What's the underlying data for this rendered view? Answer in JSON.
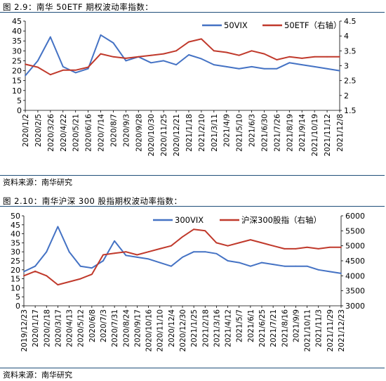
{
  "figures": [
    {
      "title": "图 2.9：南华 50ETF 期权波动率指数：",
      "source": "资料来源：南华研究",
      "colors": {
        "vix": "#4472c4",
        "price": "#c0392b"
      },
      "chart_data": {
        "type": "line",
        "x": [
          "2020/1/2",
          "2020/2/5",
          "2020/3/26",
          "2020/4/22",
          "2020/5/21",
          "2020/6/16",
          "2020/7/14",
          "2020/8/7",
          "2020/9/3",
          "2020/9/28",
          "2020/10/30",
          "2020/11/25",
          "2020/12/21",
          "2021/1/18",
          "2021/2/10",
          "2021/3/11",
          "2021/4/9",
          "2021/5/10",
          "2021/6/3",
          "2021/6/30",
          "2021/7/26",
          "2021/8/19",
          "2021/9/14",
          "2021/10/19",
          "2021/11/12",
          "2021/12/8"
        ],
        "ylim": [
          0,
          45
        ],
        "y_ticks": [
          "0",
          "5",
          "10",
          "15",
          "20",
          "25",
          "30",
          "35",
          "40",
          "45"
        ],
        "y2lim": [
          1.5,
          4.5
        ],
        "y2_ticks": [
          "1.5",
          "2",
          "2.5",
          "3",
          "3.5",
          "4",
          "4.5"
        ],
        "series": [
          {
            "name": "50VIX",
            "axis": "left",
            "values": [
              17.5,
              25,
              37,
              22,
              19,
              21,
              38,
              34,
              25,
              27,
              24,
              25,
              23,
              28,
              26,
              23,
              22,
              21,
              22,
              21,
              21,
              24,
              23,
              22,
              21,
              20
            ]
          },
          {
            "name": "50ETF（右轴）",
            "axis": "right",
            "values": [
              3.05,
              2.95,
              2.7,
              2.85,
              2.85,
              2.95,
              3.4,
              3.3,
              3.25,
              3.3,
              3.35,
              3.4,
              3.5,
              3.8,
              3.9,
              3.5,
              3.45,
              3.35,
              3.5,
              3.4,
              3.2,
              3.3,
              3.25,
              3.3,
              3.3,
              3.3
            ]
          }
        ]
      }
    },
    {
      "title": "图 2.10：南华沪深 300 股指期权波动率指数：",
      "source": "资料来源：南华研究",
      "colors": {
        "vix": "#4472c4",
        "price": "#c0392b"
      },
      "chart_data": {
        "type": "line",
        "x": [
          "2019/12/23",
          "2020/1/17",
          "2020/2/18",
          "2020/3/17",
          "2020/4/13",
          "2020/5/12",
          "2020/6/8",
          "2020/7/3",
          "2020/7/31",
          "2020/8/24",
          "2020/9/17",
          "2020/10/16",
          "2020/11/10",
          "2020/12/4",
          "2020/12/30",
          "2021/1/25",
          "2021/2/18",
          "2021/3/16",
          "2021/4/12",
          "2021/5/7",
          "2021/6/1",
          "2021/6/25",
          "2021/7/21",
          "2021/8/16",
          "2021/9/9",
          "2021/10/11",
          "2021/11/3",
          "2021/11/29",
          "2021/12/23"
        ],
        "ylim": [
          0,
          50
        ],
        "y_ticks": [
          "0",
          "5",
          "10",
          "15",
          "20",
          "25",
          "30",
          "35",
          "40",
          "45",
          "50"
        ],
        "y2lim": [
          3000,
          6000
        ],
        "y2_ticks": [
          "3000",
          "3500",
          "4000",
          "4500",
          "5000",
          "5500",
          "6000"
        ],
        "series": [
          {
            "name": "300VIX",
            "axis": "left",
            "values": [
              19,
              22,
              30,
              44,
              30,
              22,
              21,
              25,
              36,
              28,
              27,
              26,
              24,
              22,
              27,
              30,
              30,
              29,
              25,
              24,
              22,
              24,
              23,
              22,
              22,
              22,
              20,
              19,
              18
            ]
          },
          {
            "name": "沪深300股指（右轴）",
            "axis": "right",
            "values": [
              4000,
              4150,
              4000,
              3700,
              3800,
              3900,
              4050,
              4700,
              4750,
              4800,
              4700,
              4800,
              4900,
              5000,
              5300,
              5550,
              5500,
              5100,
              5000,
              5100,
              5200,
              5100,
              5000,
              4900,
              4900,
              4950,
              4900,
              4950,
              4950
            ]
          }
        ]
      }
    }
  ]
}
